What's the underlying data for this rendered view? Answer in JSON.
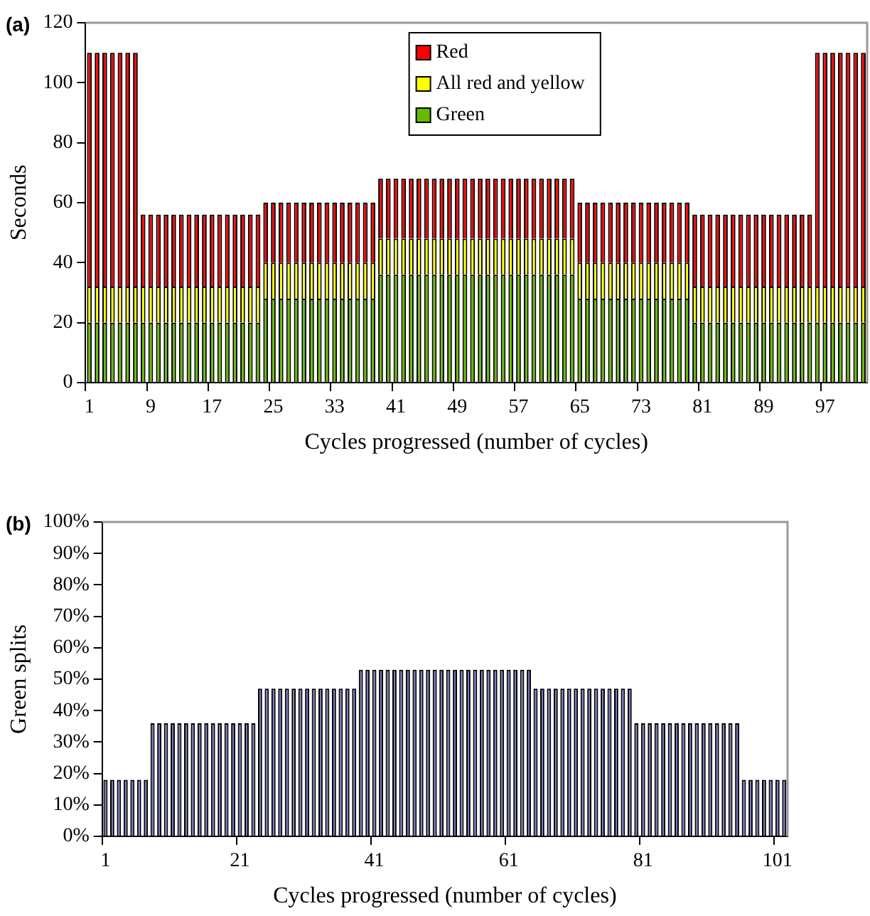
{
  "chart_data": [
    {
      "type": "bar",
      "title": "(a)",
      "xlabel": "Cycles progressed (number of cycles)",
      "ylabel": "Seconds",
      "stacked": true,
      "legend": "top",
      "grid": false,
      "categories": [
        "1",
        null,
        null,
        null,
        null,
        null,
        null,
        null,
        "9",
        null,
        null,
        null,
        null,
        null,
        null,
        null,
        "17",
        null,
        null,
        null,
        null,
        null,
        null,
        null,
        "25",
        null,
        null,
        null,
        null,
        null,
        null,
        null,
        "33",
        null,
        null,
        null,
        null,
        null,
        null,
        null,
        "41",
        null,
        null,
        null,
        null,
        null,
        null,
        null,
        "49",
        null,
        null,
        null,
        null,
        null,
        null,
        null,
        "57",
        null,
        null,
        null,
        null,
        null,
        null,
        null,
        "65",
        null,
        null,
        null,
        null,
        null,
        null,
        null,
        "73",
        null,
        null,
        null,
        null,
        null,
        null,
        null,
        "81",
        null,
        null,
        null,
        null,
        null,
        null,
        null,
        "89",
        null,
        null,
        null,
        null,
        null,
        null,
        null,
        "97",
        null,
        null,
        null,
        null,
        null
      ],
      "ylim": [
        0,
        120
      ],
      "yticks": [
        0,
        20,
        40,
        60,
        80,
        100,
        120
      ],
      "series": [
        {
          "name": "Green",
          "color": "#66bb00",
          "values": [
            20,
            20,
            20,
            20,
            20,
            20,
            20,
            20,
            20,
            20,
            20,
            20,
            20,
            20,
            20,
            20,
            20,
            20,
            20,
            20,
            20,
            20,
            20,
            28,
            28,
            28,
            28,
            28,
            28,
            28,
            28,
            28,
            28,
            28,
            28,
            28,
            28,
            28,
            36,
            36,
            36,
            36,
            36,
            36,
            36,
            36,
            36,
            36,
            36,
            36,
            36,
            36,
            36,
            36,
            36,
            36,
            36,
            36,
            36,
            36,
            36,
            36,
            36,
            36,
            28,
            28,
            28,
            28,
            28,
            28,
            28,
            28,
            28,
            28,
            28,
            28,
            28,
            28,
            28,
            20,
            20,
            20,
            20,
            20,
            20,
            20,
            20,
            20,
            20,
            20,
            20,
            20,
            20,
            20,
            20,
            20,
            20,
            20,
            20,
            20,
            20,
            20
          ]
        },
        {
          "name": "All red and yellow",
          "color": "#ffff00",
          "values": [
            12,
            12,
            12,
            12,
            12,
            12,
            12,
            12,
            12,
            12,
            12,
            12,
            12,
            12,
            12,
            12,
            12,
            12,
            12,
            12,
            12,
            12,
            12,
            12,
            12,
            12,
            12,
            12,
            12,
            12,
            12,
            12,
            12,
            12,
            12,
            12,
            12,
            12,
            12,
            12,
            12,
            12,
            12,
            12,
            12,
            12,
            12,
            12,
            12,
            12,
            12,
            12,
            12,
            12,
            12,
            12,
            12,
            12,
            12,
            12,
            12,
            12,
            12,
            12,
            12,
            12,
            12,
            12,
            12,
            12,
            12,
            12,
            12,
            12,
            12,
            12,
            12,
            12,
            12,
            12,
            12,
            12,
            12,
            12,
            12,
            12,
            12,
            12,
            12,
            12,
            12,
            12,
            12,
            12,
            12,
            12,
            12,
            12,
            12,
            12,
            12,
            12
          ]
        },
        {
          "name": "Red",
          "color": "#ff0000",
          "values": [
            78,
            78,
            78,
            78,
            78,
            78,
            78,
            24,
            24,
            24,
            24,
            24,
            24,
            24,
            24,
            24,
            24,
            24,
            24,
            24,
            24,
            24,
            24,
            20,
            20,
            20,
            20,
            20,
            20,
            20,
            20,
            20,
            20,
            20,
            20,
            20,
            20,
            20,
            20,
            20,
            20,
            20,
            20,
            20,
            20,
            20,
            20,
            20,
            20,
            20,
            20,
            20,
            20,
            20,
            20,
            20,
            20,
            20,
            20,
            20,
            20,
            20,
            20,
            20,
            20,
            20,
            20,
            20,
            20,
            20,
            20,
            20,
            20,
            20,
            20,
            20,
            20,
            20,
            20,
            24,
            24,
            24,
            24,
            24,
            24,
            24,
            24,
            24,
            24,
            24,
            24,
            24,
            24,
            24,
            24,
            78,
            78,
            78,
            78,
            78,
            78,
            78
          ]
        }
      ]
    },
    {
      "type": "bar",
      "title": "(b)",
      "xlabel": "Cycles progressed (number of cycles)",
      "ylabel": "Green splits",
      "grid": false,
      "categories": [
        "1",
        null,
        null,
        null,
        null,
        null,
        null,
        null,
        null,
        null,
        null,
        null,
        null,
        null,
        null,
        null,
        null,
        null,
        null,
        null,
        "21",
        null,
        null,
        null,
        null,
        null,
        null,
        null,
        null,
        null,
        null,
        null,
        null,
        null,
        null,
        null,
        null,
        null,
        null,
        null,
        "41",
        null,
        null,
        null,
        null,
        null,
        null,
        null,
        null,
        null,
        null,
        null,
        null,
        null,
        null,
        null,
        null,
        null,
        null,
        null,
        "61",
        null,
        null,
        null,
        null,
        null,
        null,
        null,
        null,
        null,
        null,
        null,
        null,
        null,
        null,
        null,
        null,
        null,
        null,
        null,
        "81",
        null,
        null,
        null,
        null,
        null,
        null,
        null,
        null,
        null,
        null,
        null,
        null,
        null,
        null,
        null,
        null,
        null,
        null,
        null,
        "101",
        null
      ],
      "ylim": [
        0,
        100
      ],
      "yticks": [
        {
          "value": 0,
          "label": "0%"
        },
        {
          "value": 10,
          "label": "10%"
        },
        {
          "value": 20,
          "label": "20%"
        },
        {
          "value": 30,
          "label": "30%"
        },
        {
          "value": 40,
          "label": "40%"
        },
        {
          "value": 50,
          "label": "50%"
        },
        {
          "value": 60,
          "label": "60%"
        },
        {
          "value": 70,
          "label": "70%"
        },
        {
          "value": 80,
          "label": "80%"
        },
        {
          "value": 90,
          "label": "90%"
        },
        {
          "value": 100,
          "label": "100%"
        }
      ],
      "color": "#7474bc",
      "values": [
        18,
        18,
        18,
        18,
        18,
        18,
        18,
        36,
        36,
        36,
        36,
        36,
        36,
        36,
        36,
        36,
        36,
        36,
        36,
        36,
        36,
        36,
        36,
        47,
        47,
        47,
        47,
        47,
        47,
        47,
        47,
        47,
        47,
        47,
        47,
        47,
        47,
        47,
        53,
        53,
        53,
        53,
        53,
        53,
        53,
        53,
        53,
        53,
        53,
        53,
        53,
        53,
        53,
        53,
        53,
        53,
        53,
        53,
        53,
        53,
        53,
        53,
        53,
        53,
        47,
        47,
        47,
        47,
        47,
        47,
        47,
        47,
        47,
        47,
        47,
        47,
        47,
        47,
        47,
        36,
        36,
        36,
        36,
        36,
        36,
        36,
        36,
        36,
        36,
        36,
        36,
        36,
        36,
        36,
        36,
        18,
        18,
        18,
        18,
        18,
        18,
        18
      ]
    }
  ]
}
